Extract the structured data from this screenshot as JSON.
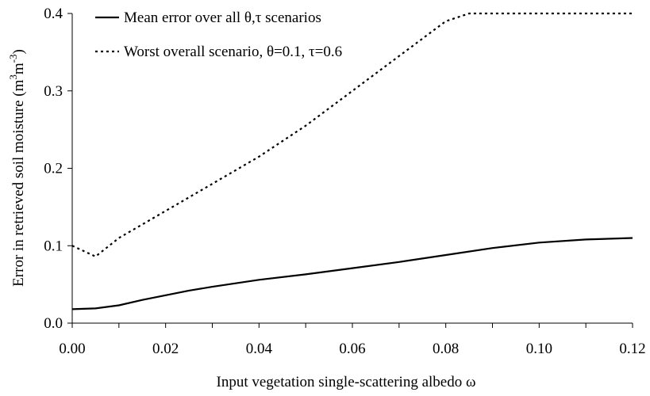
{
  "chart_data": {
    "type": "line",
    "xlabel": "Input vegetation single-scattering albedo ω",
    "ylabel_main": "Error in retrieved soil moisture (m",
    "ylabel_sup1": "3",
    "ylabel_mid": "m",
    "ylabel_sup2": "-3",
    "ylabel_end": ")",
    "xlim": [
      0.0,
      0.12
    ],
    "ylim": [
      0.0,
      0.4
    ],
    "x_ticks": [
      0.0,
      0.02,
      0.04,
      0.06,
      0.08,
      0.1,
      0.12
    ],
    "x_tick_labels": [
      "0.00",
      "0.02",
      "0.04",
      "0.06",
      "0.08",
      "0.10",
      "0.12"
    ],
    "x_minor_step": 0.01,
    "y_ticks": [
      0.0,
      0.1,
      0.2,
      0.3,
      0.4
    ],
    "y_tick_labels": [
      "0.0",
      "0.1",
      "0.2",
      "0.3",
      "0.4"
    ],
    "grid": false,
    "legend_position": "top-left",
    "series": [
      {
        "name": "Mean error over all θ,τ scenarios",
        "style": "solid",
        "color": "#000000",
        "x": [
          0.0,
          0.005,
          0.01,
          0.015,
          0.02,
          0.025,
          0.03,
          0.04,
          0.05,
          0.06,
          0.07,
          0.08,
          0.09,
          0.1,
          0.11,
          0.12
        ],
        "y": [
          0.018,
          0.019,
          0.023,
          0.03,
          0.036,
          0.042,
          0.047,
          0.056,
          0.063,
          0.071,
          0.079,
          0.088,
          0.097,
          0.104,
          0.108,
          0.11
        ]
      },
      {
        "name": "Worst overall scenario, θ=0.1, τ=0.6",
        "style": "dotted",
        "color": "#000000",
        "x": [
          0.0,
          0.005,
          0.01,
          0.02,
          0.03,
          0.04,
          0.05,
          0.06,
          0.07,
          0.08,
          0.085,
          0.09,
          0.1,
          0.11,
          0.12
        ],
        "y": [
          0.1,
          0.086,
          0.11,
          0.145,
          0.18,
          0.215,
          0.255,
          0.3,
          0.345,
          0.39,
          0.4,
          0.4,
          0.4,
          0.4,
          0.4
        ]
      }
    ]
  }
}
